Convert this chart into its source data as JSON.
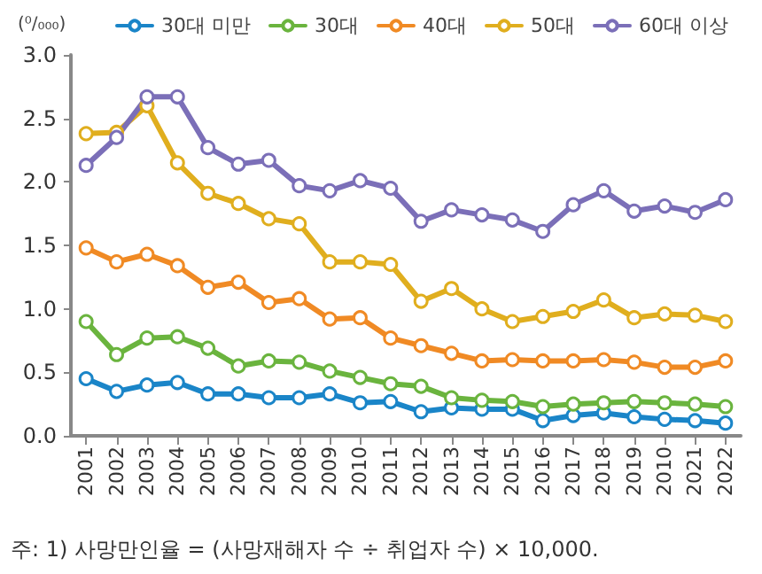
{
  "chart_data": {
    "type": "line",
    "ylabel": "(⁰/₀₀₀)",
    "categories": [
      "2001",
      "2002",
      "2003",
      "2004",
      "2005",
      "2006",
      "2007",
      "2008",
      "2009",
      "2010",
      "2011",
      "2012",
      "2013",
      "2014",
      "2015",
      "2016",
      "2017",
      "2018",
      "2019",
      "2010",
      "2021",
      "2022"
    ],
    "series": [
      {
        "name": "30대 미만",
        "color": "#1a85c8",
        "values": [
          0.45,
          0.35,
          0.4,
          0.42,
          0.33,
          0.33,
          0.3,
          0.3,
          0.33,
          0.26,
          0.27,
          0.19,
          0.22,
          0.21,
          0.21,
          0.12,
          0.16,
          0.18,
          0.15,
          0.13,
          0.12,
          0.1
        ]
      },
      {
        "name": "30대",
        "color": "#6ab43e",
        "values": [
          0.9,
          0.64,
          0.77,
          0.78,
          0.69,
          0.55,
          0.59,
          0.58,
          0.51,
          0.46,
          0.41,
          0.39,
          0.3,
          0.28,
          0.27,
          0.23,
          0.25,
          0.26,
          0.27,
          0.26,
          0.25,
          0.23
        ]
      },
      {
        "name": "40대",
        "color": "#f08a24",
        "values": [
          1.48,
          1.37,
          1.43,
          1.34,
          1.17,
          1.21,
          1.05,
          1.08,
          0.92,
          0.93,
          0.77,
          0.71,
          0.65,
          0.59,
          0.6,
          0.59,
          0.59,
          0.6,
          0.58,
          0.54,
          0.54,
          0.59
        ]
      },
      {
        "name": "50대",
        "color": "#e0ae1e",
        "values": [
          2.38,
          2.39,
          2.6,
          2.15,
          1.91,
          1.83,
          1.71,
          1.67,
          1.37,
          1.37,
          1.35,
          1.06,
          1.16,
          1.0,
          0.9,
          0.94,
          0.98,
          1.07,
          0.93,
          0.96,
          0.95,
          0.9
        ]
      },
      {
        "name": "60대 이상",
        "color": "#7b6fb8",
        "values": [
          2.13,
          2.35,
          2.67,
          2.67,
          2.27,
          2.14,
          2.17,
          1.97,
          1.93,
          2.01,
          1.95,
          1.69,
          1.78,
          1.74,
          1.7,
          1.61,
          1.82,
          1.93,
          1.77,
          1.81,
          1.76,
          1.86
        ]
      }
    ],
    "ylim": [
      0,
      3
    ],
    "yticks": [
      {
        "value": 0,
        "label": "0.0"
      },
      {
        "value": 0.5,
        "label": "0.5"
      },
      {
        "value": 1,
        "label": "1.0"
      },
      {
        "value": 1.5,
        "label": "1.5"
      },
      {
        "value": 2,
        "label": "2.0"
      },
      {
        "value": 2.5,
        "label": "2.5"
      },
      {
        "value": 3,
        "label": "3.0"
      }
    ],
    "grid": false,
    "legend": "top",
    "marker": "circle",
    "line_style": "solid",
    "annotations": [
      "주: 1) 사망만인율 = (사망재해자 수 ÷ 취업자 수) × 10,000."
    ]
  }
}
